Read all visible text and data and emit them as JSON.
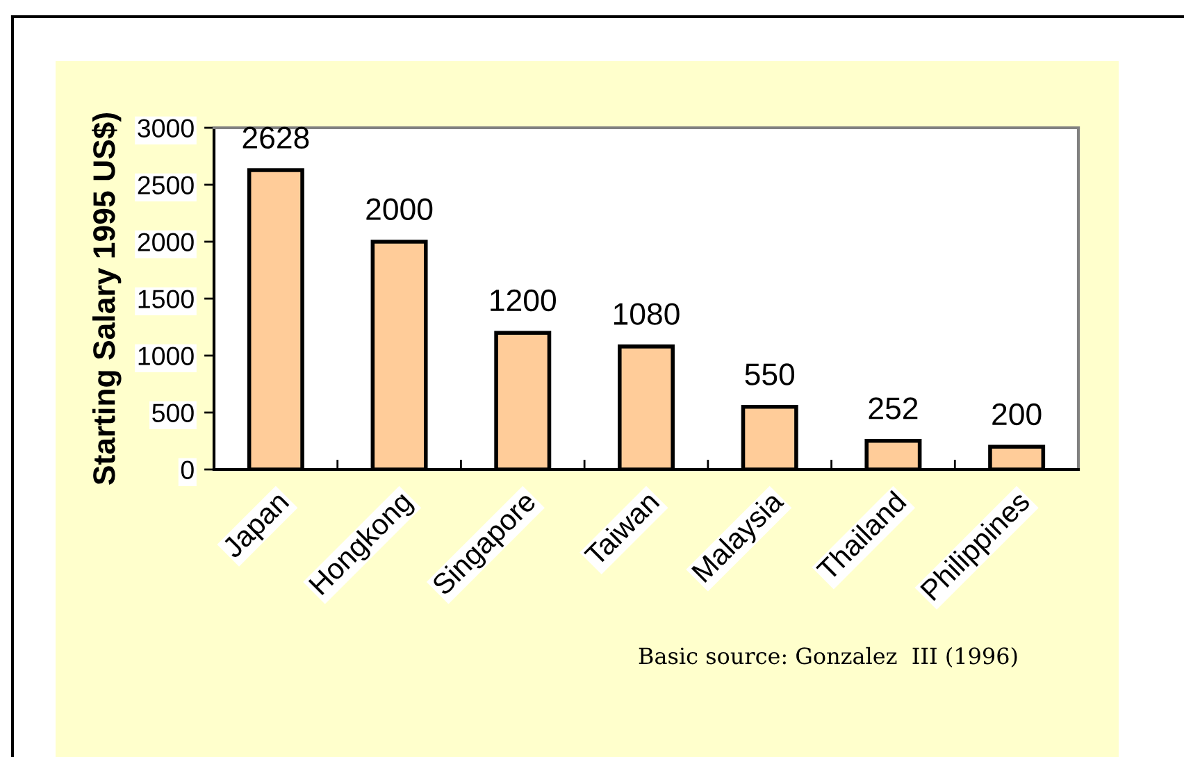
{
  "chart_data": {
    "type": "bar",
    "ylabel": "Starting Salary 1995 US$)",
    "categories": [
      "Japan",
      "Hongkong",
      "Singapore",
      "Taiwan",
      "Malaysia",
      "Thailand",
      "Philippines"
    ],
    "values": [
      2628,
      2000,
      1200,
      1080,
      550,
      252,
      200
    ],
    "color": "#ffcc99",
    "ylim": [
      0,
      3000
    ],
    "yticks": [
      0,
      500,
      1000,
      1500,
      2000,
      2500,
      3000
    ],
    "data_labels": true,
    "annotations": [
      "Basic source: Gonzalez  III (1996)"
    ]
  }
}
